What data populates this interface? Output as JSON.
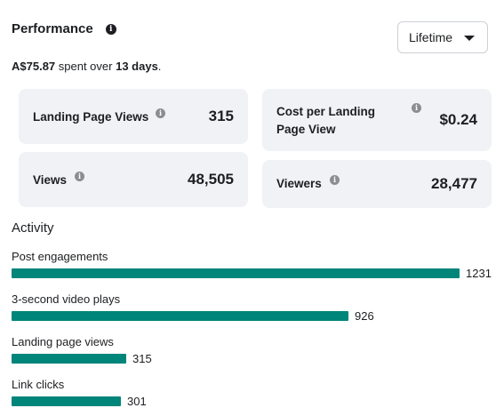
{
  "header": {
    "title": "Performance",
    "info_icon": "info-icon"
  },
  "dropdown": {
    "selected": "Lifetime"
  },
  "spent": {
    "amount": "A$75.87",
    "middle": " spent over ",
    "days": "13 days",
    "end": "."
  },
  "cards": {
    "landing_page_views": {
      "label": "Landing Page Views",
      "value": "315"
    },
    "cost_per_landing_page_view": {
      "label": "Cost per Landing Page View",
      "value": "$0.24"
    },
    "views": {
      "label": "Views",
      "value": "48,505"
    },
    "viewers": {
      "label": "Viewers",
      "value": "28,477"
    }
  },
  "activity": {
    "title": "Activity",
    "max": 1231,
    "items": [
      {
        "label": "Post engagements",
        "value": 1231
      },
      {
        "label": "3-second video plays",
        "value": 926
      },
      {
        "label": "Landing page views",
        "value": 315
      },
      {
        "label": "Link clicks",
        "value": 301
      }
    ]
  },
  "colors": {
    "bar": "#00857a",
    "card_bg": "#f0f2f5",
    "text": "#1c1e21"
  }
}
